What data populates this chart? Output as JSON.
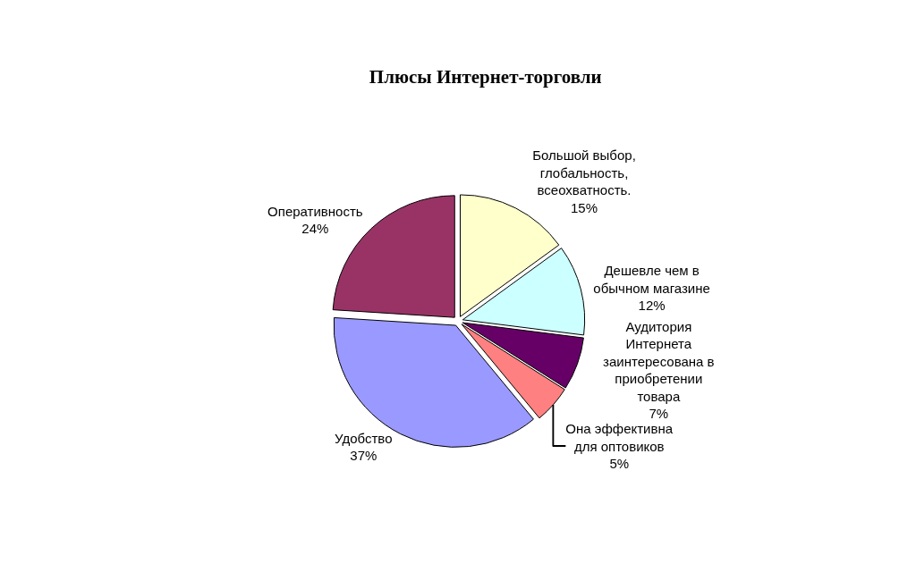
{
  "chart_data": {
    "type": "pie",
    "title": "Плюсы Интернет-торговли",
    "categories": [
      "Большой выбор, глобальность, всеохватность.",
      "Дешевле чем в обычном магазине",
      "Аудитория Интернета заинтересована в приобретении товара",
      "Она эффективна для оптовиков",
      "Удобство",
      "Оперативность"
    ],
    "values": [
      15,
      12,
      7,
      5,
      37,
      24
    ],
    "value_labels": [
      "15%",
      "12%",
      "7%",
      "5%",
      "37%",
      "24%"
    ],
    "colors": [
      "#ffffcc",
      "#ccffff",
      "#660066",
      "#ff8080",
      "#9999ff",
      "#993366"
    ]
  }
}
